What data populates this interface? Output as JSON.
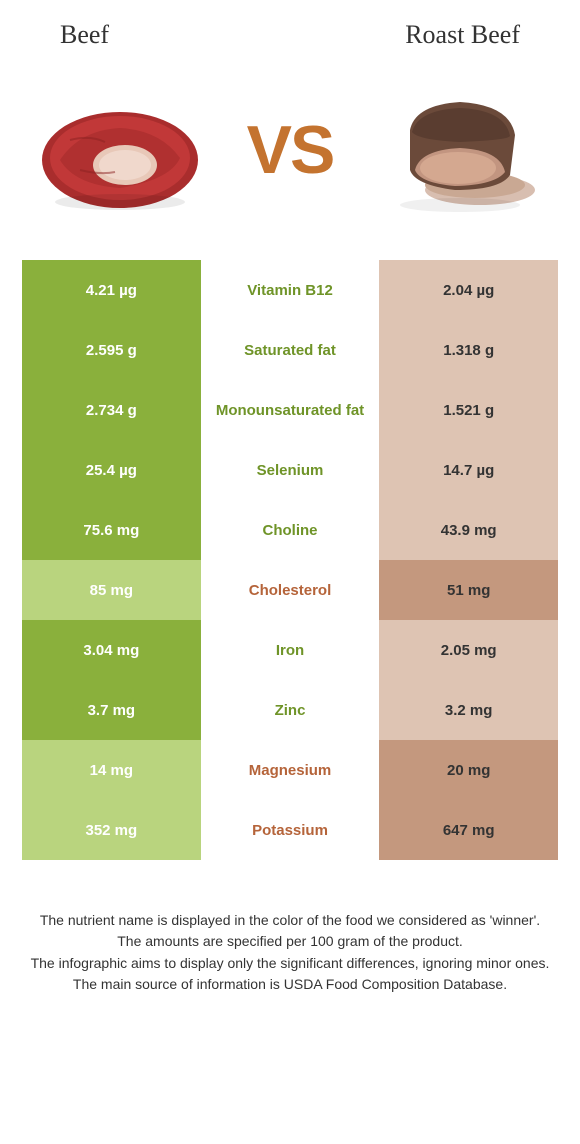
{
  "header": {
    "left_title": "Beef",
    "right_title": "Roast Beef"
  },
  "vs_label": "VS",
  "colors": {
    "left_winner_bg": "#8ab03c",
    "left_loser_bg": "#b9d47e",
    "right_winner_bg": "#c4987e",
    "right_loser_bg": "#dec4b3",
    "left_text": "#ffffff",
    "right_text": "#333333",
    "nutrient_left_color": "#6f9428",
    "nutrient_right_color": "#b5643a",
    "vs_color": "#c4732f"
  },
  "rows": [
    {
      "left": "4.21 µg",
      "nutrient": "Vitamin B12",
      "right": "2.04 µg",
      "winner": "left"
    },
    {
      "left": "2.595 g",
      "nutrient": "Saturated fat",
      "right": "1.318 g",
      "winner": "left"
    },
    {
      "left": "2.734 g",
      "nutrient": "Monounsaturated fat",
      "right": "1.521 g",
      "winner": "left"
    },
    {
      "left": "25.4 µg",
      "nutrient": "Selenium",
      "right": "14.7 µg",
      "winner": "left"
    },
    {
      "left": "75.6 mg",
      "nutrient": "Choline",
      "right": "43.9 mg",
      "winner": "left"
    },
    {
      "left": "85 mg",
      "nutrient": "Cholesterol",
      "right": "51 mg",
      "winner": "right"
    },
    {
      "left": "3.04 mg",
      "nutrient": "Iron",
      "right": "2.05 mg",
      "winner": "left"
    },
    {
      "left": "3.7 mg",
      "nutrient": "Zinc",
      "right": "3.2 mg",
      "winner": "left"
    },
    {
      "left": "14 mg",
      "nutrient": "Magnesium",
      "right": "20 mg",
      "winner": "right"
    },
    {
      "left": "352 mg",
      "nutrient": "Potassium",
      "right": "647 mg",
      "winner": "right"
    }
  ],
  "footer": [
    "The nutrient name is displayed in the color of the food we considered as 'winner'.",
    "The amounts are specified per 100 gram of the product.",
    "The infographic aims to display only the significant differences, ignoring minor ones.",
    "The main source of information is USDA Food Composition Database."
  ]
}
